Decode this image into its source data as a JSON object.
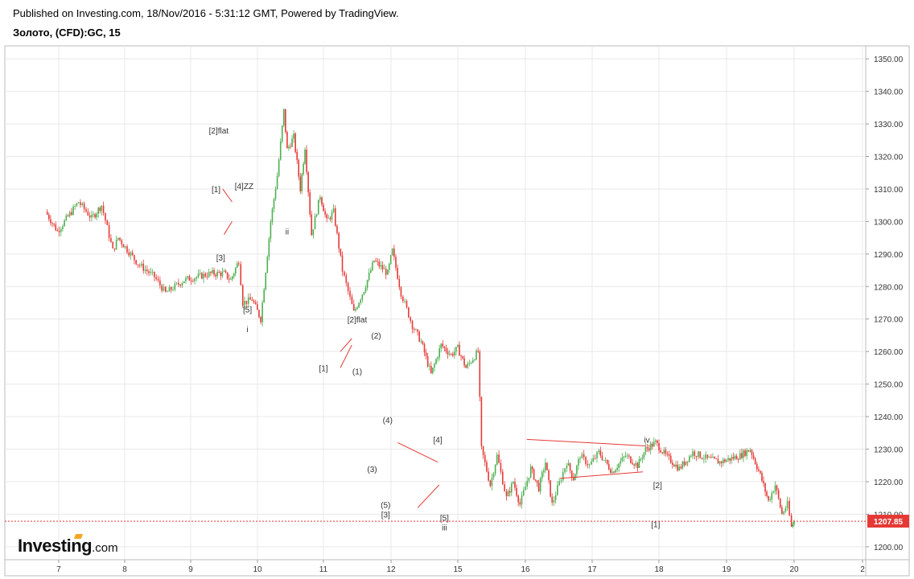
{
  "header": {
    "published": "Published on Investing.com, 18/Nov/2016 - 5:31:12 GMT, Powered by TradingView.",
    "symbol": "Золото, (CFD):GC, 15"
  },
  "logo": {
    "name": "Investing",
    "domain": ".com"
  },
  "colors": {
    "up": "#4caf50",
    "down": "#e53935",
    "wave_line": "#e53935",
    "price_tag": "#e53935",
    "grid": "#e8e8e8"
  },
  "chart_data": {
    "type": "candlestick",
    "ylim": [
      1196,
      1354
    ],
    "y_ticks": [
      "1350.00",
      "1340.00",
      "1330.00",
      "1320.00",
      "1310.00",
      "1300.00",
      "1290.00",
      "1280.00",
      "1270.00",
      "1260.00",
      "1250.00",
      "1240.00",
      "1230.00",
      "1220.00",
      "1210.00",
      "1200.00"
    ],
    "x_ticks": [
      "7",
      "8",
      "9",
      "10",
      "11",
      "12",
      "15",
      "16",
      "17",
      "18",
      "19",
      "20",
      "2"
    ],
    "last_price": "1207.85",
    "price_path": [
      [
        6.8,
        1303
      ],
      [
        6.98,
        1297
      ],
      [
        7.3,
        1306
      ],
      [
        7.5,
        1301
      ],
      [
        7.65,
        1305
      ],
      [
        7.82,
        1291
      ],
      [
        7.9,
        1295
      ],
      [
        8.2,
        1287
      ],
      [
        8.45,
        1283
      ],
      [
        8.62,
        1278
      ],
      [
        8.9,
        1282
      ],
      [
        9.3,
        1284
      ],
      [
        9.5,
        1284
      ],
      [
        9.6,
        1282
      ],
      [
        9.72,
        1288
      ],
      [
        9.78,
        1275
      ],
      [
        9.92,
        1276
      ],
      [
        10.05,
        1270
      ],
      [
        10.2,
        1300
      ],
      [
        10.3,
        1314
      ],
      [
        10.4,
        1334
      ],
      [
        10.45,
        1322
      ],
      [
        10.55,
        1326
      ],
      [
        10.65,
        1310
      ],
      [
        10.72,
        1323
      ],
      [
        10.82,
        1296
      ],
      [
        10.95,
        1308
      ],
      [
        11.05,
        1300
      ],
      [
        11.15,
        1303
      ],
      [
        11.28,
        1285
      ],
      [
        11.45,
        1272
      ],
      [
        11.6,
        1279
      ],
      [
        11.75,
        1288
      ],
      [
        11.95,
        1284
      ],
      [
        12.02,
        1291
      ],
      [
        12.15,
        1278
      ],
      [
        12.32,
        1268
      ],
      [
        12.45,
        1263
      ],
      [
        12.6,
        1253
      ],
      [
        12.75,
        1262
      ],
      [
        12.9,
        1259
      ],
      [
        13.0,
        1261
      ],
      [
        13.12,
        1255
      ],
      [
        13.3,
        1260
      ],
      [
        13.35,
        1230
      ],
      [
        13.48,
        1219
      ],
      [
        13.58,
        1228
      ],
      [
        13.72,
        1215
      ],
      [
        13.82,
        1220
      ],
      [
        13.92,
        1213
      ],
      [
        14.08,
        1224
      ],
      [
        14.2,
        1218
      ],
      [
        14.3,
        1226
      ],
      [
        14.4,
        1213
      ],
      [
        14.48,
        1218
      ],
      [
        14.62,
        1226
      ],
      [
        14.72,
        1221
      ],
      [
        14.82,
        1228
      ],
      [
        14.96,
        1225
      ],
      [
        15.1,
        1229
      ],
      [
        15.3,
        1223
      ],
      [
        15.5,
        1228
      ],
      [
        15.68,
        1225
      ],
      [
        15.8,
        1230
      ],
      [
        15.95,
        1232
      ],
      [
        16.1,
        1228
      ],
      [
        16.3,
        1224
      ],
      [
        16.5,
        1229
      ],
      [
        16.72,
        1227
      ],
      [
        16.9,
        1226
      ],
      [
        17.05,
        1227
      ],
      [
        17.2,
        1228
      ],
      [
        17.35,
        1230
      ],
      [
        17.5,
        1222
      ],
      [
        17.62,
        1214
      ],
      [
        17.72,
        1219
      ],
      [
        17.82,
        1210
      ],
      [
        17.9,
        1213
      ],
      [
        17.96,
        1206
      ],
      [
        18.0,
        1207.85
      ]
    ],
    "wave_labels": [
      {
        "text": "[2]flat",
        "x": 9.42,
        "y": 1327
      },
      {
        "text": "[1]",
        "x": 9.38,
        "y": 1309
      },
      {
        "text": "[4]ZZ",
        "x": 9.8,
        "y": 1310
      },
      {
        "text": "[3]",
        "x": 9.45,
        "y": 1288
      },
      {
        "text": "ii",
        "x": 10.45,
        "y": 1296
      },
      {
        "text": "[5]",
        "x": 9.85,
        "y": 1272
      },
      {
        "text": "i",
        "x": 9.85,
        "y": 1266
      },
      {
        "text": "[2]flat",
        "x": 11.5,
        "y": 1269
      },
      {
        "text": "(2)",
        "x": 11.78,
        "y": 1264
      },
      {
        "text": "[1]",
        "x": 11.0,
        "y": 1254
      },
      {
        "text": "(1)",
        "x": 11.5,
        "y": 1253
      },
      {
        "text": "(4)",
        "x": 11.95,
        "y": 1238
      },
      {
        "text": "[4]",
        "x": 12.7,
        "y": 1232
      },
      {
        "text": "(3)",
        "x": 11.72,
        "y": 1223
      },
      {
        "text": "(5)",
        "x": 11.92,
        "y": 1212
      },
      {
        "text": "[3]",
        "x": 11.92,
        "y": 1209
      },
      {
        "text": "[5]",
        "x": 12.8,
        "y": 1208
      },
      {
        "text": "iii",
        "x": 12.8,
        "y": 1205
      },
      {
        "text": "iv",
        "x": 15.82,
        "y": 1232
      },
      {
        "text": "[2]",
        "x": 15.98,
        "y": 1218
      },
      {
        "text": "[1]",
        "x": 15.95,
        "y": 1206
      }
    ],
    "wave_lines": [
      [
        [
          9.5,
          1296
        ],
        [
          9.62,
          1300
        ]
      ],
      [
        [
          9.48,
          1310
        ],
        [
          9.62,
          1306
        ]
      ],
      [
        [
          11.25,
          1255
        ],
        [
          11.42,
          1262
        ]
      ],
      [
        [
          11.25,
          1260
        ],
        [
          11.42,
          1264
        ]
      ],
      [
        [
          12.1,
          1232
        ],
        [
          12.7,
          1226
        ]
      ],
      [
        [
          12.4,
          1212
        ],
        [
          12.72,
          1219
        ]
      ],
      [
        [
          14.02,
          1233
        ],
        [
          15.8,
          1231
        ]
      ],
      [
        [
          14.52,
          1221
        ],
        [
          15.76,
          1223
        ]
      ]
    ]
  }
}
